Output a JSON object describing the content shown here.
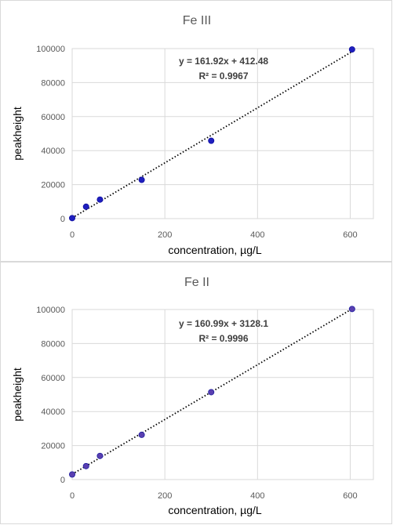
{
  "chart_data": [
    {
      "type": "scatter",
      "title": "Fe III",
      "xlabel": "concentration, µg/L",
      "ylabel": "peakheight",
      "xlim": [
        0,
        650
      ],
      "ylim": [
        0,
        100000
      ],
      "xticks": [
        0,
        200,
        400,
        600
      ],
      "yticks": [
        0,
        20000,
        40000,
        60000,
        80000,
        100000
      ],
      "x": [
        0,
        30,
        60,
        150,
        300,
        604
      ],
      "y": [
        300,
        7000,
        11200,
        22800,
        45800,
        99500
      ],
      "trendline": {
        "slope": 161.92,
        "intercept": 412.48,
        "style": "dotted"
      },
      "equation": "y = 161.92x + 412.48",
      "r_squared": "R² = 0.9967",
      "grid": true,
      "marker_color": "#1f1fbf",
      "marker_edge": "#1010a0"
    },
    {
      "type": "scatter",
      "title": "Fe II",
      "xlabel": "concentration, µg/L",
      "ylabel": "peakheight",
      "xlim": [
        0,
        650
      ],
      "ylim": [
        0,
        100000
      ],
      "xticks": [
        0,
        200,
        400,
        600
      ],
      "yticks": [
        0,
        20000,
        40000,
        60000,
        80000,
        100000
      ],
      "x": [
        0,
        30,
        60,
        150,
        300,
        604
      ],
      "y": [
        3000,
        7900,
        13900,
        26300,
        51400,
        100300
      ],
      "trendline": {
        "slope": 160.99,
        "intercept": 3128.1,
        "style": "dotted"
      },
      "equation": "y = 160.99x + 3128.1",
      "r_squared": "R² = 0.9996",
      "grid": true,
      "marker_color": "#5a3fb0",
      "marker_edge": "#2020a0"
    }
  ]
}
